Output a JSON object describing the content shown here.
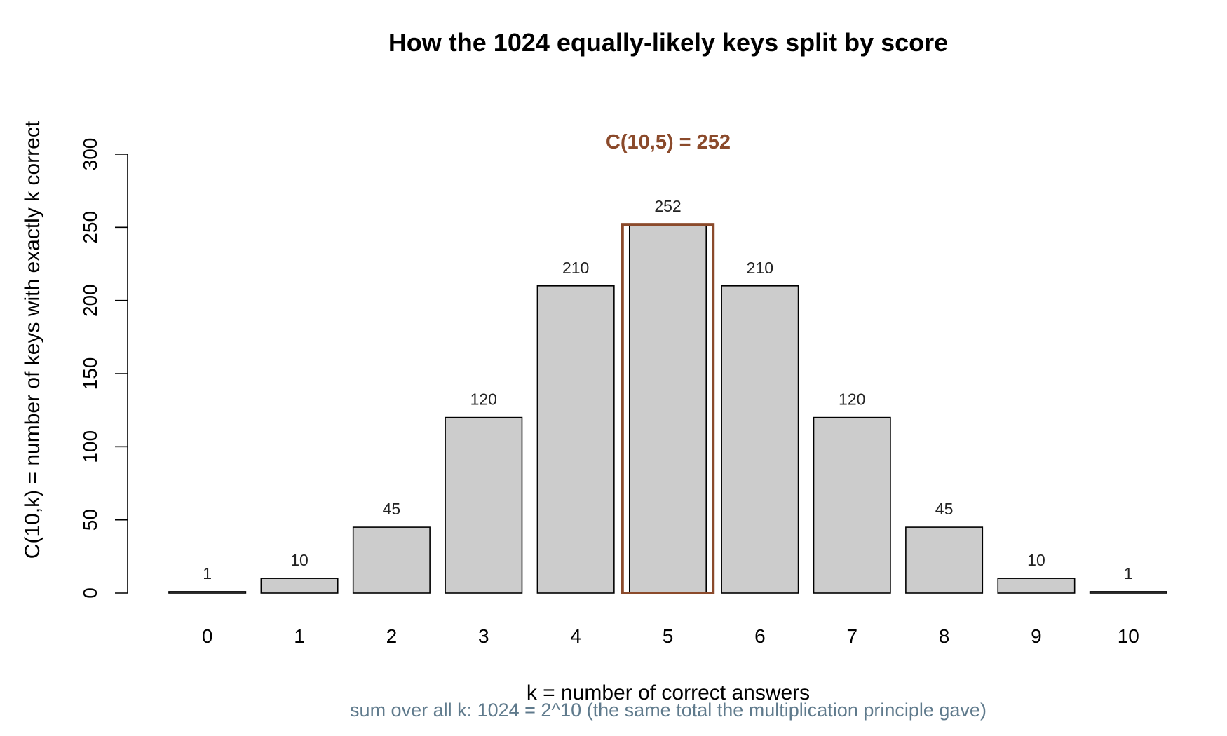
{
  "chart_data": {
    "type": "bar",
    "title": "How the 1024 equally-likely keys split by score",
    "xlabel": "k = number of correct answers",
    "ylabel": "C(10,k) = number of keys with exactly k correct",
    "categories": [
      "0",
      "1",
      "2",
      "3",
      "4",
      "5",
      "6",
      "7",
      "8",
      "9",
      "10"
    ],
    "values": [
      1,
      10,
      45,
      120,
      210,
      252,
      210,
      120,
      45,
      10,
      1
    ],
    "ylim": [
      0,
      300
    ],
    "yticks": [
      0,
      50,
      100,
      150,
      200,
      250,
      300
    ],
    "highlight": {
      "category": "5",
      "label": "C(10,5) = 252",
      "color": "#8B4A2B"
    },
    "footnote": "sum over all k: 1024 = 2^10  (the same total the multiplication principle gave)",
    "footnote_color": "#5F7A8C",
    "bar_color": "#cccccc",
    "grid": false
  }
}
